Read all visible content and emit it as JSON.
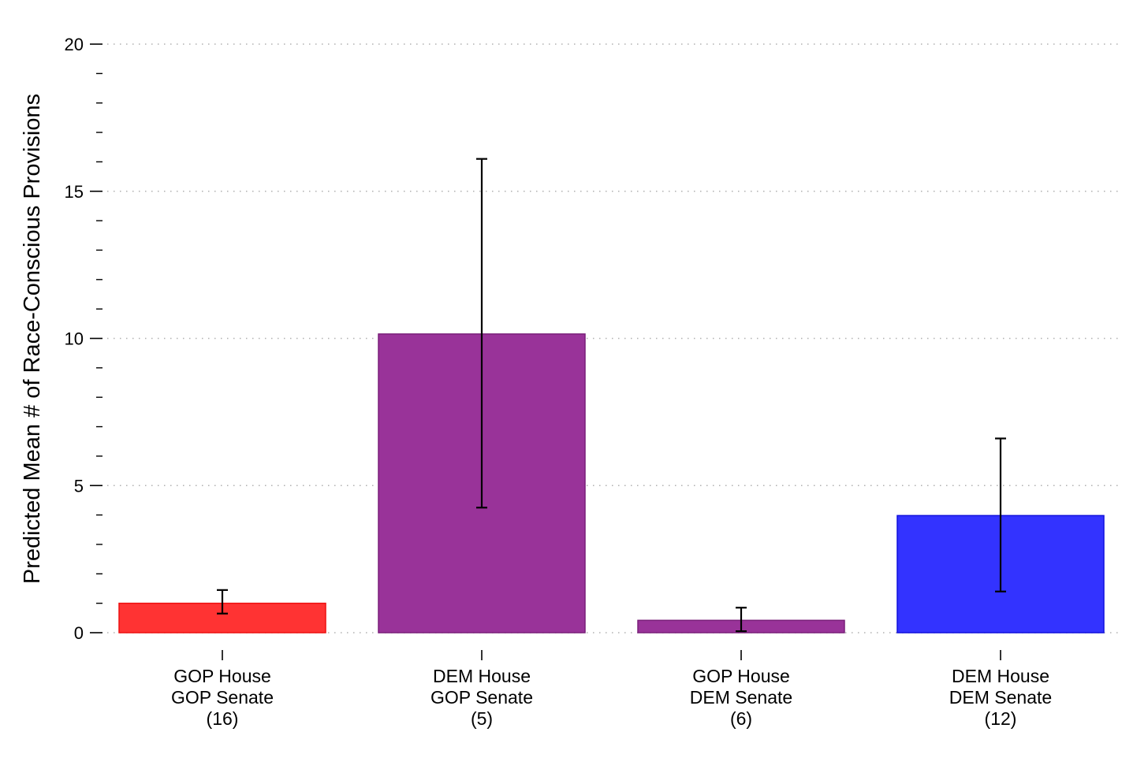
{
  "chart_data": {
    "type": "bar",
    "title": "",
    "xlabel": "",
    "ylabel": "Predicted Mean # of Race-Conscious Provisions",
    "ylim": [
      0,
      20
    ],
    "yticks": [
      0,
      5,
      10,
      15,
      20
    ],
    "yticks_minor_step": 1,
    "grid": true,
    "categories": [
      {
        "line1": "GOP House",
        "line2": "GOP Senate",
        "count": "(16)"
      },
      {
        "line1": "DEM House",
        "line2": "GOP Senate",
        "count": "(5)"
      },
      {
        "line1": "GOP House",
        "line2": "DEM Senate",
        "count": "(6)"
      },
      {
        "line1": "DEM House",
        "line2": "DEM Senate",
        "count": "(12)"
      }
    ],
    "values": [
      1.0,
      10.15,
      0.42,
      3.98
    ],
    "ci_low": [
      0.65,
      4.25,
      0.05,
      1.4
    ],
    "ci_high": [
      1.45,
      16.1,
      0.85,
      6.6
    ],
    "colors": [
      "#ff3333",
      "#993399",
      "#993399",
      "#3333ff"
    ],
    "edge_colors": [
      "#ee1111",
      "#7a1f7a",
      "#7a1f7a",
      "#1111dd"
    ]
  }
}
